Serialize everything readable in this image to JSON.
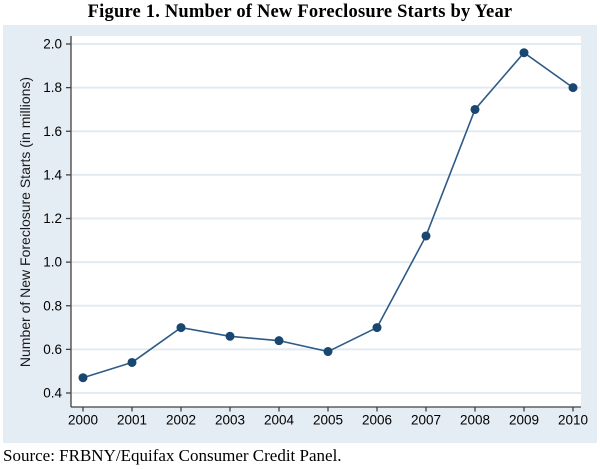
{
  "figure": {
    "title": "Figure 1. Number of New Foreclosure Starts by Year",
    "source": "Source: FRBNY/Equifax Consumer Credit Panel."
  },
  "colors": {
    "chart_background": "#e5edf4",
    "plot_background": "#ffffff",
    "gridline": "#e3ebf2",
    "axis": "#404040",
    "line": "#2e5a87",
    "marker": "#1a476f",
    "text": "#000000"
  },
  "chart_data": {
    "type": "line",
    "title": "Figure 1. Number of New Foreclosure Starts by Year",
    "x": [
      "2000",
      "2001",
      "2002",
      "2003",
      "2004",
      "2005",
      "2006",
      "2007",
      "2008",
      "2009",
      "2010"
    ],
    "values": [
      0.47,
      0.54,
      0.7,
      0.66,
      0.64,
      0.59,
      0.7,
      1.12,
      1.7,
      1.96,
      1.8
    ],
    "xlabel": "",
    "ylabel": "Number of New Foreclosure Starts (in millions)",
    "ylim": [
      0.4,
      2.0
    ],
    "y_ticks": [
      0.4,
      0.6,
      0.8,
      1.0,
      1.2,
      1.4,
      1.6,
      1.8,
      2.0
    ],
    "y_tick_format": "1-decimal",
    "grid": "horizontal",
    "legend": "none",
    "marker_style": "filled-circle",
    "series_name": "New Foreclosure Starts"
  }
}
